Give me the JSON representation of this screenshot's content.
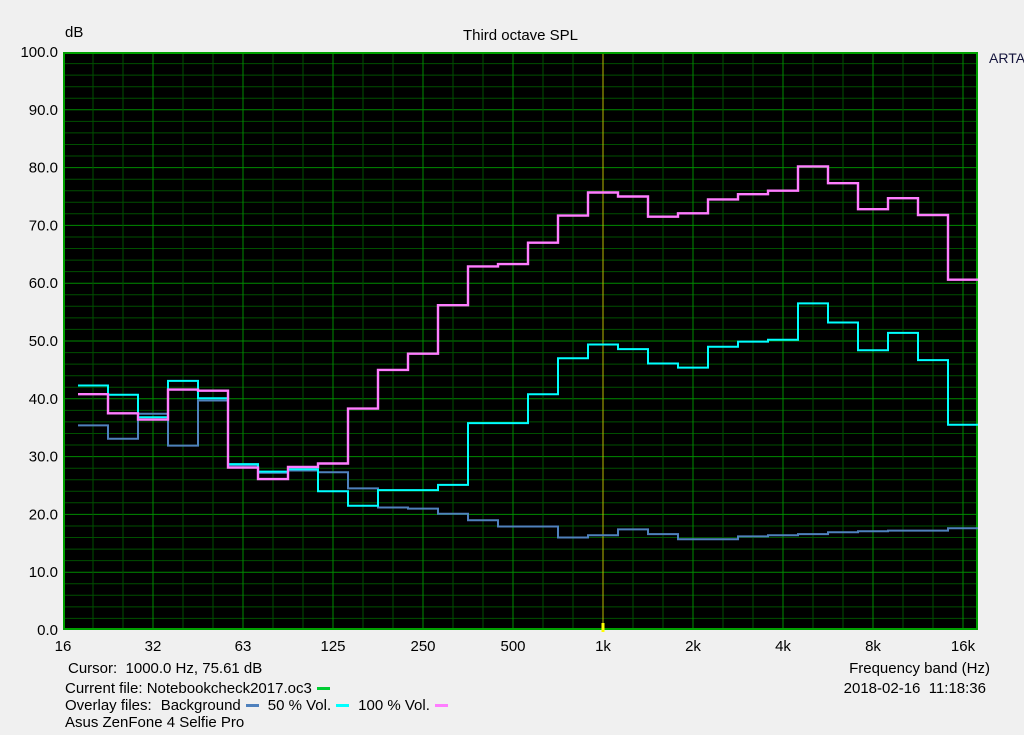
{
  "header": {
    "y_unit": "dB",
    "title": "Third octave SPL",
    "brand": "ARTA"
  },
  "status": {
    "cursor_line": "Cursor:  1000.0 Hz, 75.61 dB",
    "current_file_line": "Current file: Notebookcheck2017.oc3",
    "overlay_label": "Overlay files:",
    "device": "Asus ZenFone 4 Selfie Pro",
    "x_axis_label": "Frequency band (Hz)",
    "datetime": "2018-02-16  11:18:36"
  },
  "colors": {
    "page_bg": "#f0f0f0",
    "plot_bg": "#000000",
    "grid_minor": "#004f00",
    "grid_major": "#008a00",
    "plot_border": "#00a000",
    "cursor_line": "#b8b800",
    "cursor_tick": "#ffff00",
    "current_file": "#00cc33",
    "text": "#000000"
  },
  "chart_data": {
    "type": "line",
    "subtype": "third-octave-step",
    "title": "Third octave SPL",
    "ylabel": "dB",
    "xlabel": "Frequency band (Hz)",
    "ylim": [
      0,
      100
    ],
    "grid": true,
    "y_tick_labels": [
      "100.0",
      "90.0",
      "80.0",
      "70.0",
      "60.0",
      "50.0",
      "40.0",
      "30.0",
      "20.0",
      "10.0",
      "0.0"
    ],
    "x_tick_labels": [
      "16",
      "32",
      "63",
      "125",
      "250",
      "500",
      "1k",
      "2k",
      "4k",
      "8k",
      "16k"
    ],
    "frequencies_hz": [
      20,
      25,
      31.5,
      40,
      50,
      63,
      80,
      100,
      125,
      160,
      200,
      250,
      315,
      400,
      500,
      630,
      800,
      1000,
      1250,
      1600,
      2000,
      2500,
      3150,
      4000,
      5000,
      6300,
      8000,
      10000,
      12500,
      16000
    ],
    "series": [
      {
        "name": "Background",
        "color": "#4f81bd",
        "width": 2,
        "values": [
          35.4,
          33.1,
          37.4,
          31.9,
          39.7,
          28.5,
          27.2,
          27.6,
          27.3,
          24.5,
          21.2,
          21.0,
          20.1,
          19.0,
          17.9,
          17.9,
          16.0,
          16.4,
          17.4,
          16.6,
          15.7,
          15.7,
          16.2,
          16.4,
          16.6,
          16.9,
          17.1,
          17.2,
          17.2,
          17.6
        ]
      },
      {
        "name": "50 % Vol.",
        "color": "#00ffff",
        "width": 2,
        "values": [
          42.3,
          40.7,
          36.8,
          43.1,
          40.1,
          28.7,
          27.4,
          27.8,
          24.0,
          21.5,
          24.2,
          24.2,
          25.1,
          35.8,
          35.8,
          40.8,
          47.0,
          49.4,
          48.6,
          46.1,
          45.4,
          49.0,
          49.9,
          50.2,
          56.5,
          53.2,
          48.4,
          51.4,
          46.7,
          35.5
        ]
      },
      {
        "name": "100 % Vol.",
        "color": "#ff7dff",
        "width": 2.4,
        "values": [
          40.8,
          37.5,
          36.4,
          41.6,
          41.4,
          28.1,
          26.1,
          28.2,
          28.8,
          38.3,
          45.0,
          47.8,
          56.2,
          62.9,
          63.3,
          67.0,
          71.7,
          75.7,
          75.0,
          71.5,
          72.1,
          74.5,
          75.4,
          76.0,
          80.2,
          77.3,
          72.8,
          74.7,
          71.8,
          60.6
        ]
      }
    ],
    "cursor": {
      "freq_hz": 1000.0,
      "db": 75.61
    },
    "legend_position": "bottom-left-status-bar"
  }
}
